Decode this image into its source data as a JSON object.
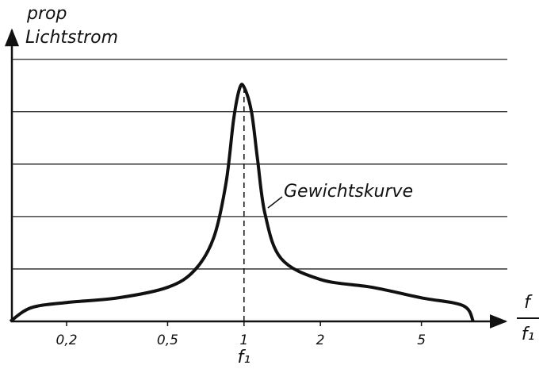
{
  "chart_data": {
    "type": "line",
    "ylabel": [
      "prop",
      "Lichtstrom"
    ],
    "xlabel": {
      "numerator": "f",
      "denominator": "f₁"
    },
    "x": [
      0.12,
      0.145,
      0.2,
      0.32,
      0.5,
      0.64,
      0.76,
      0.85,
      0.91,
      0.96,
      1,
      1.07,
      1.13,
      1.21,
      1.4,
      2,
      3.2,
      5,
      7.3,
      8
    ],
    "values": [
      0,
      0.26,
      0.36,
      0.45,
      0.65,
      0.98,
      1.6,
      2.65,
      3.85,
      4.44,
      4.47,
      4.0,
      3.1,
      2.05,
      1.2,
      0.8,
      0.65,
      0.45,
      0.3,
      0
    ],
    "color": "#111111",
    "xscale": "log",
    "xlim": [
      0.12,
      10
    ],
    "xticks": [
      {
        "value": 0.2,
        "label": "0,2"
      },
      {
        "value": 0.5,
        "label": "0,5"
      },
      1,
      2,
      5
    ],
    "ylim": [
      0,
      5.45
    ],
    "yticks": [
      1,
      2,
      3,
      4,
      5
    ],
    "ytick_labels": false,
    "grid": true,
    "vline": {
      "value": 1,
      "label": "f₁"
    },
    "annotation": "Gewichtskurve"
  }
}
